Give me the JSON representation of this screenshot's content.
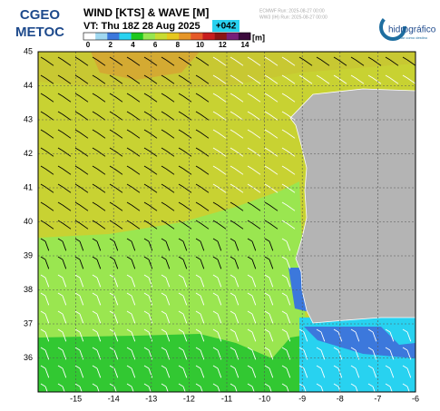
{
  "header": {
    "logo_left": [
      "CGEO",
      "METOC"
    ],
    "title": "WIND [KTS] & WAVE [M]",
    "valid_time": "VT: Thu 18Z 28 Aug 2025",
    "lead": "+042",
    "colorbar_unit": "[m]",
    "model_runs": [
      "ECMWF    Run: 2025-08-27 00:00",
      "WW3 (IH) Run: 2025-08-27 00:00"
    ],
    "logo_right": {
      "name": "hidrográfico",
      "tagline": "o mar como destino"
    }
  },
  "colorbar": {
    "lim": [
      0,
      14
    ],
    "ticks": [
      0,
      2,
      4,
      6,
      8,
      10,
      12,
      14
    ],
    "colors": [
      "#ffffff",
      "#a0d8f0",
      "#3c78dc",
      "#28d2f0",
      "#1ec81e",
      "#96e650",
      "#c8dc32",
      "#e6c81e",
      "#e69628",
      "#e65a28",
      "#c81e1e",
      "#8c1414",
      "#781e78",
      "#3c0a3c"
    ]
  },
  "map": {
    "xlim": [
      -16,
      -6
    ],
    "ylim": [
      35,
      45
    ],
    "xticks": [
      -15,
      -14,
      -13,
      -12,
      -11,
      -10,
      -9,
      -8,
      -7,
      -6
    ],
    "yticks": [
      36,
      37,
      38,
      39,
      40,
      41,
      42,
      43,
      44,
      45
    ]
  }
}
